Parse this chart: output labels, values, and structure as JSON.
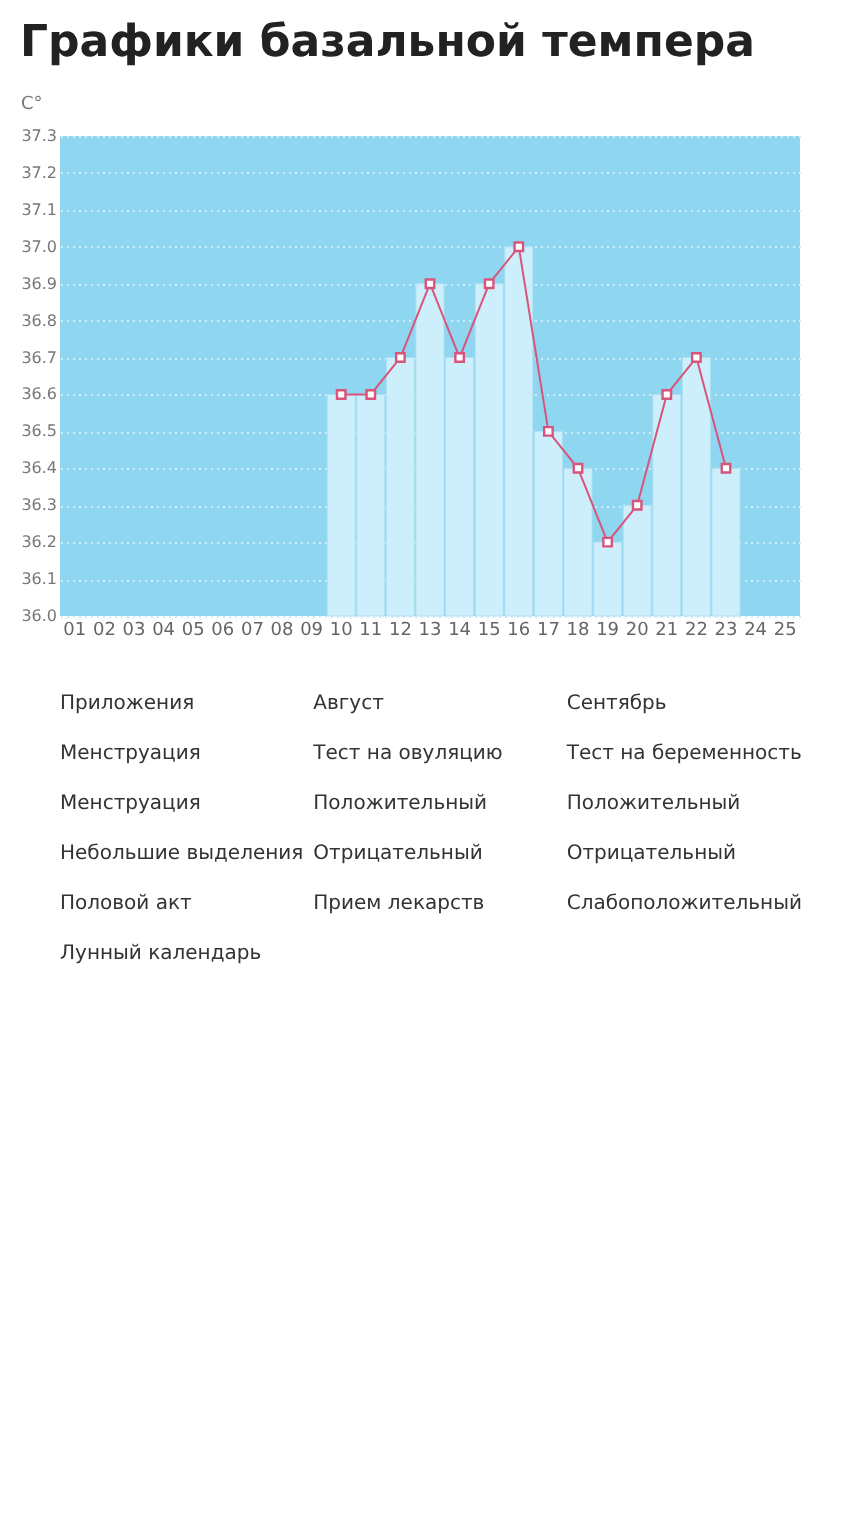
{
  "chart_data": {
    "type": "bar",
    "title": "Графики базальной темпера",
    "ylabel": "C°",
    "categories": [
      "01",
      "02",
      "03",
      "04",
      "05",
      "06",
      "07",
      "08",
      "09",
      "10",
      "11",
      "12",
      "13",
      "14",
      "15",
      "16",
      "17",
      "18",
      "19",
      "20",
      "21",
      "22",
      "23",
      "24",
      "25"
    ],
    "series": [
      {
        "color": "#cdeefb",
        "values": [
          null,
          null,
          null,
          null,
          null,
          null,
          null,
          null,
          null,
          36.6,
          36.6,
          36.7,
          36.9,
          36.7,
          36.9,
          37.0,
          36.5,
          36.4,
          36.2,
          36.3,
          36.6,
          36.7,
          36.4,
          null,
          null
        ]
      },
      {
        "type": "line",
        "color": "#d9547a",
        "marker": "square",
        "line_style": "solid",
        "values": [
          null,
          null,
          null,
          null,
          null,
          null,
          null,
          null,
          null,
          36.6,
          36.6,
          36.7,
          36.9,
          36.7,
          36.9,
          37.0,
          36.5,
          36.4,
          36.2,
          36.3,
          36.6,
          36.7,
          36.4,
          null,
          null
        ]
      }
    ],
    "ylim": [
      36.0,
      37.3
    ],
    "yticks": [
      {
        "value": 36.0,
        "label": "36.0"
      },
      36.1,
      36.2,
      36.3,
      36.4,
      36.5,
      36.6,
      36.7,
      36.8,
      36.9,
      {
        "value": 37.0,
        "label": "37.0"
      },
      37.1,
      37.2,
      37.3
    ],
    "grid": "y",
    "annotations": [
      "Приложения",
      "Август",
      "Сентябрь",
      "Менструация",
      "Тест на овуляцию",
      "Тест на беременность",
      "Менструация",
      "Положительный",
      "Положительный",
      "Небольшие выделения",
      "Отрицательный",
      "Отрицательный",
      "Половой акт",
      "Прием лекарств",
      "Слабоположительный",
      "Лунный календарь"
    ]
  }
}
